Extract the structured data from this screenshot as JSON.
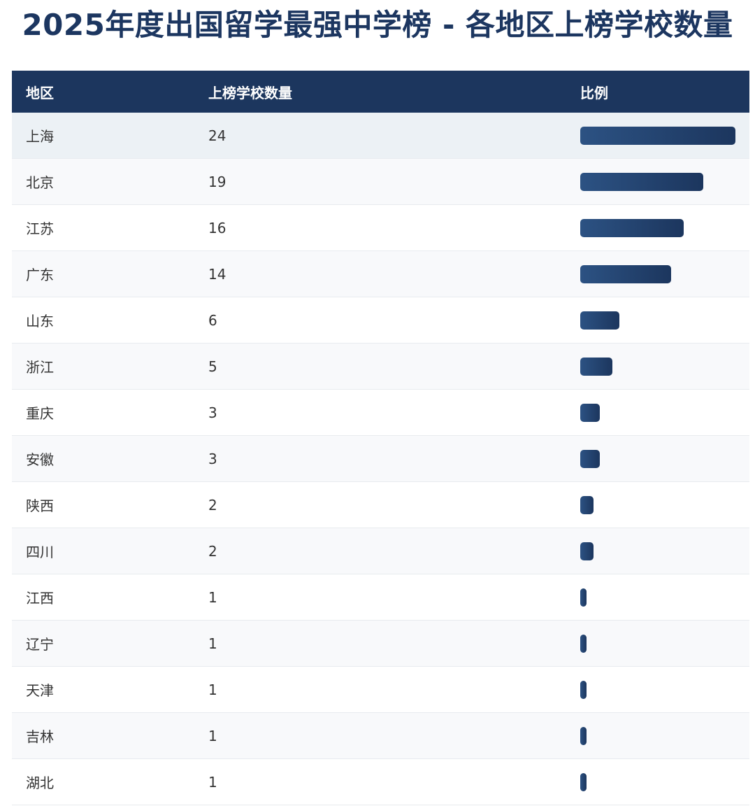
{
  "title": "2025年度出国留学最强中学榜 - 各地区上榜学校数量",
  "headers": [
    "地区",
    "上榜学校数量",
    "比例"
  ],
  "bar_color": "#1c365e",
  "chart_data": {
    "type": "table",
    "title": "2025年度出国留学最强中学榜 - 各地区上榜学校数量",
    "columns": [
      "地区",
      "上榜学校数量",
      "比例"
    ],
    "rows": [
      {
        "region": "上海",
        "count": 24
      },
      {
        "region": "北京",
        "count": 19
      },
      {
        "region": "江苏",
        "count": 16
      },
      {
        "region": "广东",
        "count": 14
      },
      {
        "region": "山东",
        "count": 6
      },
      {
        "region": "浙江",
        "count": 5
      },
      {
        "region": "重庆",
        "count": 3
      },
      {
        "region": "安徽",
        "count": 3
      },
      {
        "region": "陕西",
        "count": 2
      },
      {
        "region": "四川",
        "count": 2
      },
      {
        "region": "江西",
        "count": 1
      },
      {
        "region": "辽宁",
        "count": 1
      },
      {
        "region": "天津",
        "count": 1
      },
      {
        "region": "吉林",
        "count": 1
      },
      {
        "region": "湖北",
        "count": 1
      }
    ]
  }
}
